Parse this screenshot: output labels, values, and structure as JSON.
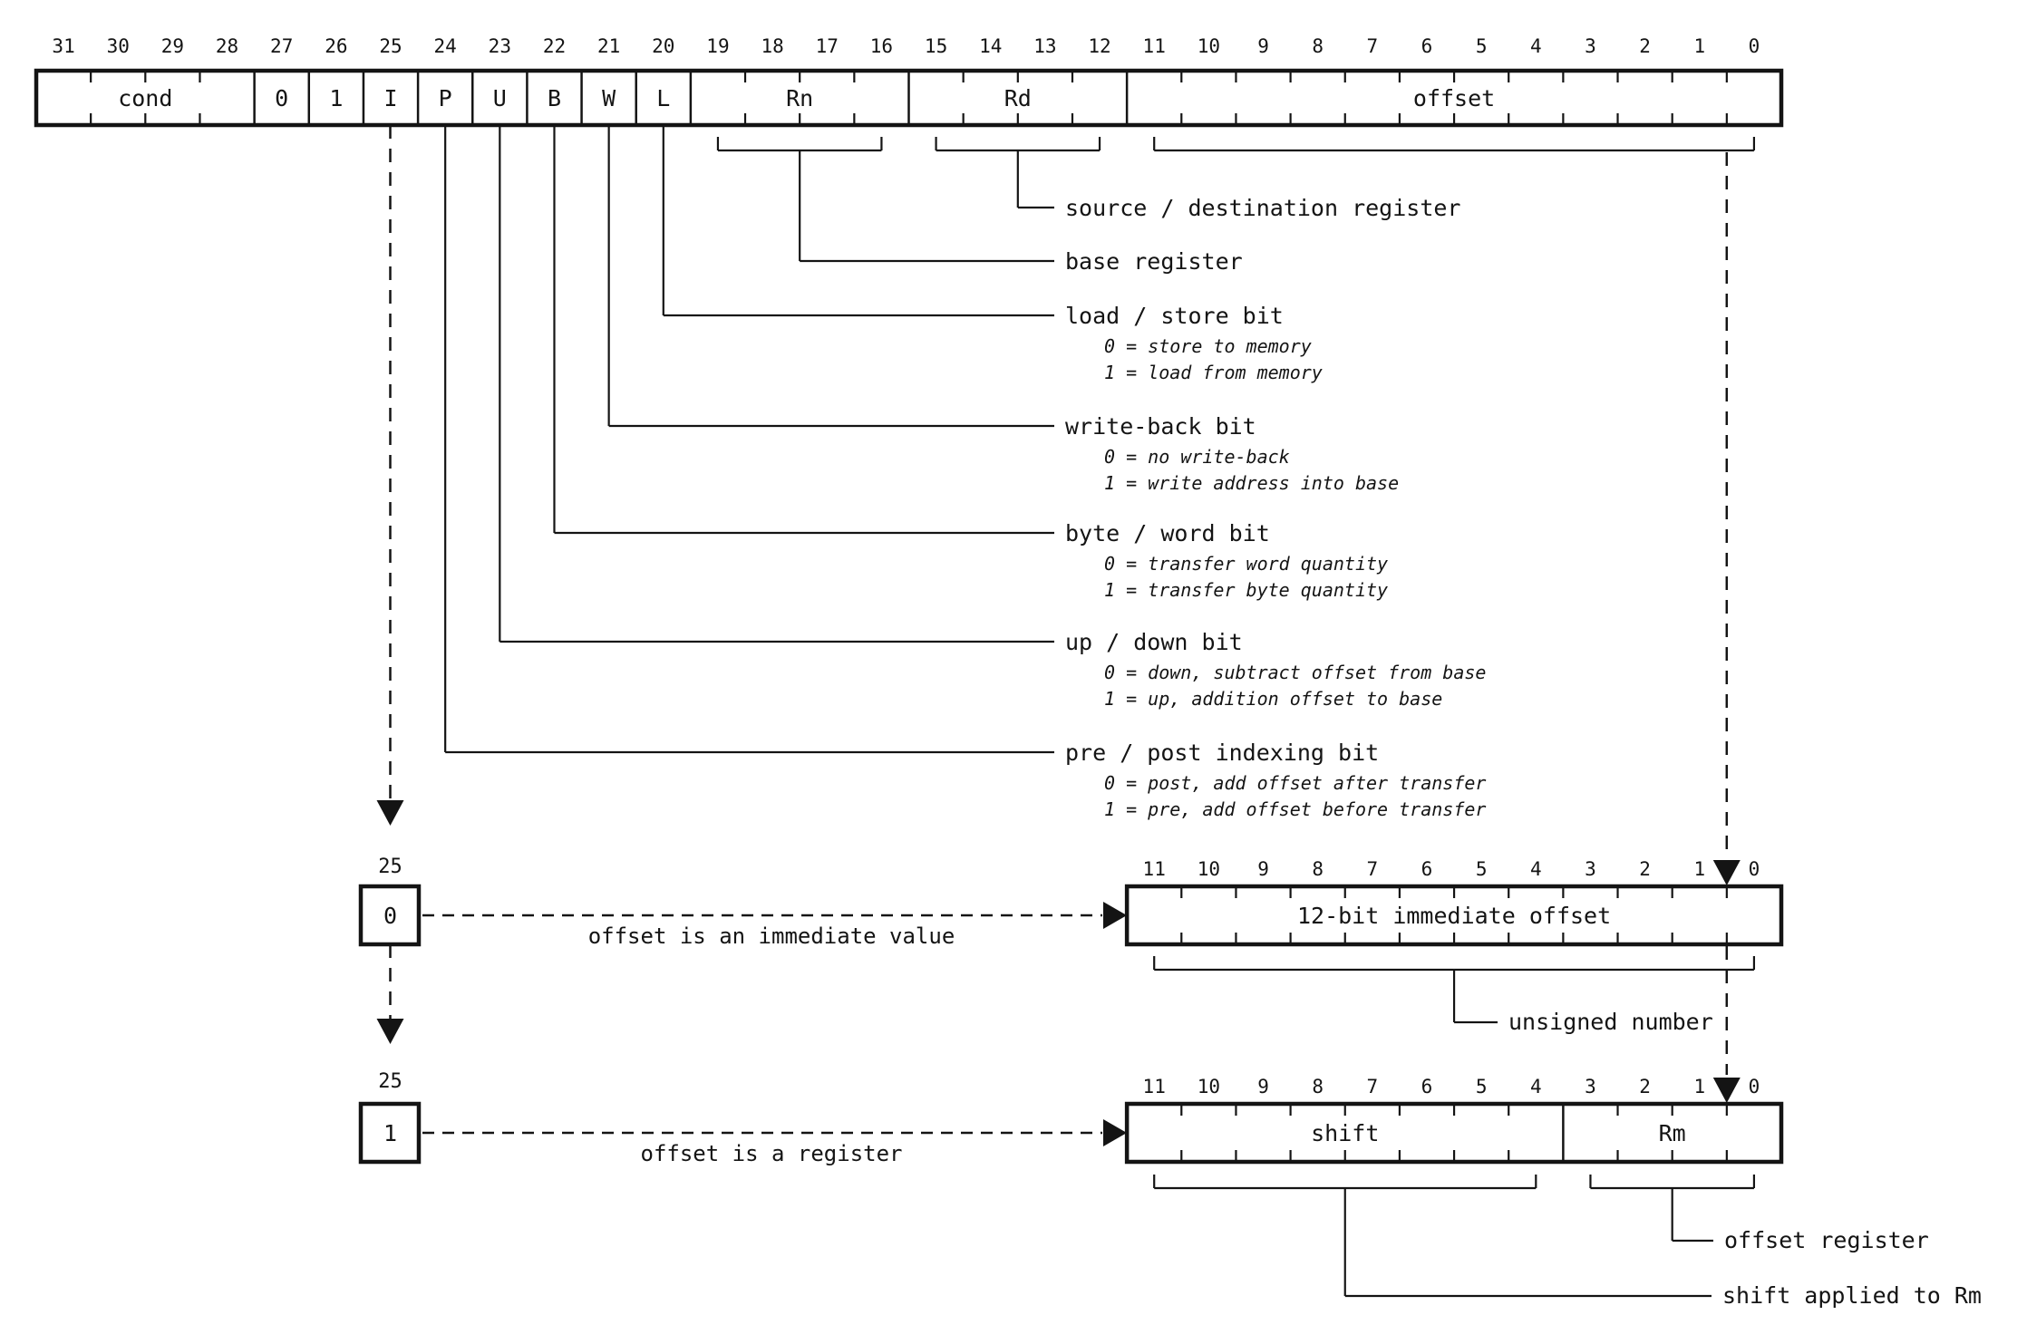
{
  "main_register": {
    "bit_numbers": [
      "31",
      "30",
      "29",
      "28",
      "27",
      "26",
      "25",
      "24",
      "23",
      "22",
      "21",
      "20",
      "19",
      "18",
      "17",
      "16",
      "15",
      "14",
      "13",
      "12",
      "11",
      "10",
      "9",
      "8",
      "7",
      "6",
      "5",
      "4",
      "3",
      "2",
      "1",
      "0"
    ],
    "fields": [
      {
        "label": "cond",
        "from": 31,
        "to": 28
      },
      {
        "label": "0",
        "from": 27,
        "to": 27
      },
      {
        "label": "1",
        "from": 26,
        "to": 26
      },
      {
        "label": "I",
        "from": 25,
        "to": 25
      },
      {
        "label": "P",
        "from": 24,
        "to": 24
      },
      {
        "label": "U",
        "from": 23,
        "to": 23
      },
      {
        "label": "B",
        "from": 22,
        "to": 22
      },
      {
        "label": "W",
        "from": 21,
        "to": 21
      },
      {
        "label": "L",
        "from": 20,
        "to": 20
      },
      {
        "label": "Rn",
        "from": 19,
        "to": 16
      },
      {
        "label": "Rd",
        "from": 15,
        "to": 12
      },
      {
        "label": "offset",
        "from": 11,
        "to": 0
      }
    ]
  },
  "field_annotations": [
    {
      "label": "source / destination register",
      "source": "Rd",
      "details": []
    },
    {
      "label": "base register",
      "source": "Rn",
      "details": []
    },
    {
      "label": "load / store bit",
      "source": "L",
      "details": [
        "0 = store to memory",
        "1 = load from memory"
      ]
    },
    {
      "label": "write-back bit",
      "source": "W",
      "details": [
        "0 = no write-back",
        "1 = write address into base"
      ]
    },
    {
      "label": "byte / word bit",
      "source": "B",
      "details": [
        "0 = transfer word quantity",
        "1 = transfer byte quantity"
      ]
    },
    {
      "label": "up / down bit",
      "source": "U",
      "details": [
        "0 = down, subtract offset from base",
        "1 = up, addition offset to base"
      ]
    },
    {
      "label": "pre / post indexing bit",
      "source": "P",
      "details": [
        "0 = post, add offset after transfer",
        "1 = pre, add offset before transfer"
      ]
    }
  ],
  "immediate_variant": {
    "selector_bit": "25",
    "selector_value": "0",
    "caption": "offset is an immediate value",
    "bit_numbers": [
      "11",
      "10",
      "9",
      "8",
      "7",
      "6",
      "5",
      "4",
      "3",
      "2",
      "1",
      "0"
    ],
    "fields": [
      {
        "label": "12-bit immediate offset",
        "from": 11,
        "to": 0
      }
    ],
    "bracket_labels": [
      {
        "label": "unsigned number",
        "over": [
          11,
          0
        ]
      }
    ]
  },
  "register_variant": {
    "selector_bit": "25",
    "selector_value": "1",
    "caption": "offset is a register",
    "bit_numbers": [
      "11",
      "10",
      "9",
      "8",
      "7",
      "6",
      "5",
      "4",
      "3",
      "2",
      "1",
      "0"
    ],
    "fields": [
      {
        "label": "shift",
        "from": 11,
        "to": 4
      },
      {
        "label": "Rm",
        "from": 3,
        "to": 0
      }
    ],
    "bracket_labels": [
      {
        "label": "offset register",
        "over": [
          3,
          0
        ]
      },
      {
        "label": "shift applied to Rm",
        "over": [
          11,
          4
        ]
      }
    ]
  }
}
